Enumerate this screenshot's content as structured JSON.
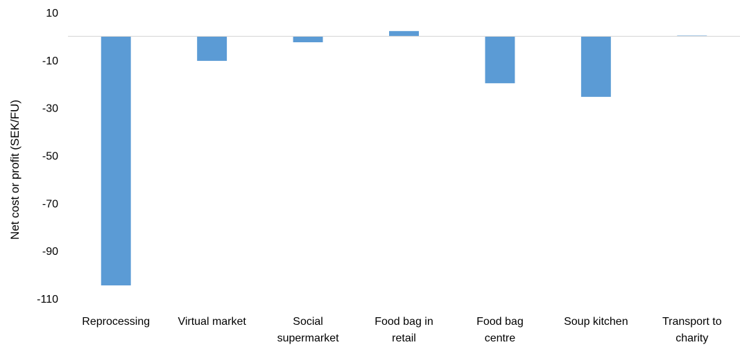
{
  "chart_data": {
    "type": "bar",
    "title": "",
    "xlabel": "",
    "ylabel": "Net cost or profit (SEK/FU)",
    "ylim": [
      -110,
      10
    ],
    "y_ticks": [
      "10",
      "-10",
      "-30",
      "-50",
      "-70",
      "-90",
      "-110"
    ],
    "y_tick_values": [
      10,
      -10,
      -30,
      -50,
      -70,
      -90,
      -110
    ],
    "categories": [
      [
        "Reprocessing"
      ],
      [
        "Virtual market"
      ],
      [
        "Social",
        "supermarket"
      ],
      [
        "Food bag in",
        "retail"
      ],
      [
        "Food bag",
        "centre"
      ],
      [
        "Soup kitchen"
      ],
      [
        "Transport to",
        "charity"
      ]
    ],
    "values": [
      -104.5,
      -10.3,
      -2.5,
      2.2,
      -19.7,
      -25.4,
      0.3
    ],
    "bar_color": "#5b9bd5",
    "axis_color": "#d9d9d9",
    "grid": false,
    "legend": "none"
  }
}
